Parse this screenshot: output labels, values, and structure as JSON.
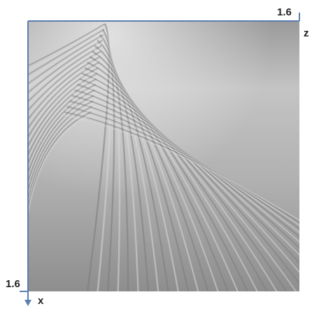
{
  "axes": {
    "horizontal": {
      "max": 1.6,
      "label": "z"
    },
    "vertical": {
      "max": 1.6,
      "label": "x"
    }
  }
}
